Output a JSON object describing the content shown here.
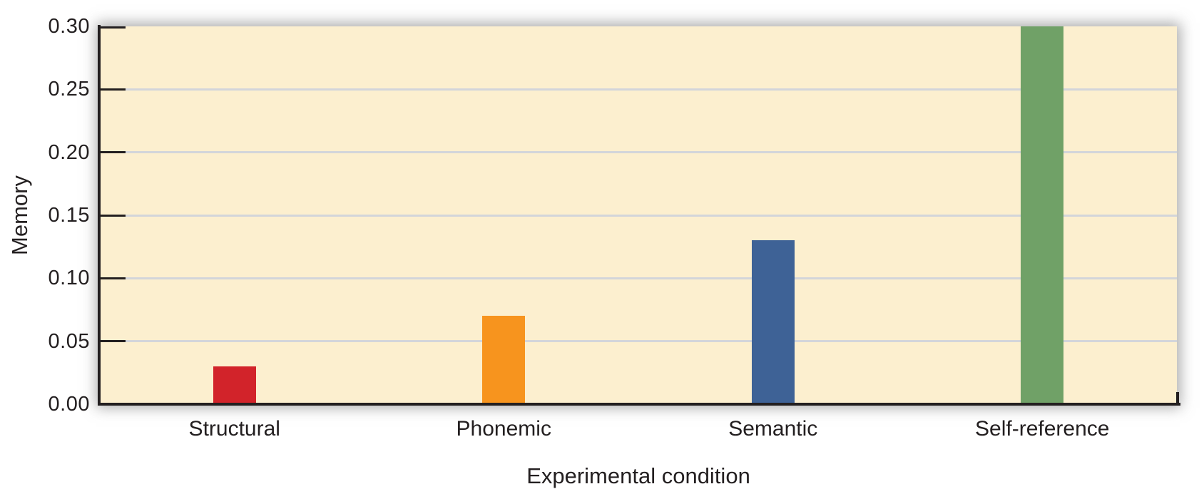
{
  "chart_data": {
    "type": "bar",
    "title": "",
    "xlabel": "Experimental condition",
    "ylabel": "Memory",
    "categories": [
      "Structural",
      "Phonemic",
      "Semantic",
      "Self-reference"
    ],
    "values": [
      0.03,
      0.07,
      0.13,
      0.3
    ],
    "bar_colors": [
      "#d2232a",
      "#f7941e",
      "#3e6296",
      "#70a167"
    ],
    "ylim": [
      0,
      0.3
    ],
    "yticks": [
      0.0,
      0.05,
      0.1,
      0.15,
      0.2,
      0.25,
      0.3
    ],
    "ytick_labels": [
      "0.00",
      "0.05",
      "0.10",
      "0.15",
      "0.20",
      "0.25",
      "0.30"
    ],
    "grid": true,
    "legend": "none",
    "colors": {
      "plot_background": "#fcefcf",
      "page_background": "#ffffff",
      "gridline": "#d3d5da",
      "axis": "#231f20",
      "text": "#231f20"
    }
  }
}
